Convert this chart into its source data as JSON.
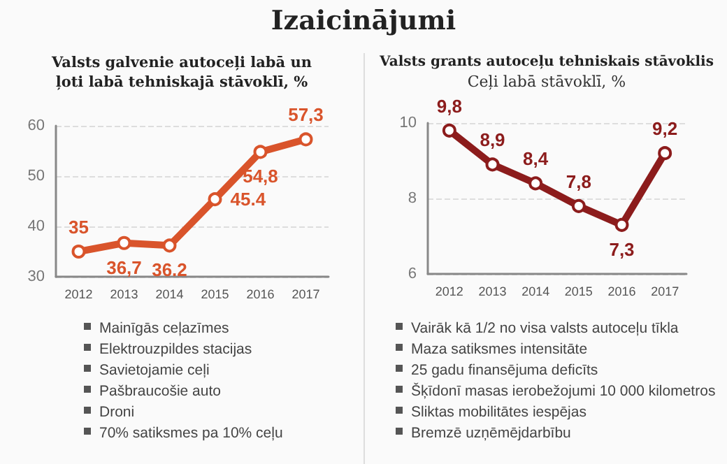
{
  "chart_data": [
    {
      "type": "other",
      "title": "Izaicinājumi"
    },
    {
      "type": "line",
      "title": "Valsts galvenie autoceļi labā un ļoti labā tehniskajā stāvoklī, %",
      "categories": [
        "2012",
        "2013",
        "2014",
        "2015",
        "2016",
        "2017"
      ],
      "series": [
        {
          "color": "#d9542b",
          "values": [
            35,
            36.7,
            36.2,
            45.4,
            54.8,
            57.3
          ],
          "value_labels": [
            "35",
            "36,7",
            "36.2",
            "45.4",
            "54,8",
            "57,3"
          ]
        }
      ],
      "ylim": [
        30,
        60
      ],
      "yticks": [
        30,
        40,
        50,
        60
      ],
      "grid": "y",
      "marker": "circle",
      "line_style": "solid",
      "annotations": [
        "Mainīgās ceļazīmes",
        "Elektrouzpildes stacijas",
        "Savietojamie ceļi",
        "Pašbraucošie auto",
        "Droni",
        "70% satiksmes pa 10% ceļu"
      ]
    },
    {
      "type": "line",
      "title": "Valsts grants autoceļu tehniskais stāvoklis",
      "subtitle": "Ceļi labā stāvoklī, %",
      "categories": [
        "2012",
        "2013",
        "2014",
        "2015",
        "2016",
        "2017"
      ],
      "series": [
        {
          "color": "#8c1c1c",
          "values": [
            9.8,
            8.9,
            8.4,
            7.8,
            7.3,
            9.2
          ],
          "value_labels": [
            "9,8",
            "8,9",
            "8,4",
            "7,8",
            "7,3",
            "9,2"
          ]
        }
      ],
      "ylim": [
        6,
        10
      ],
      "yticks": [
        6,
        8,
        10
      ],
      "grid": "y",
      "marker": "circle",
      "line_style": "solid",
      "annotations": [
        "Vairāk kā 1/2 no visa valsts autoceļu tīkla",
        "Maza satiksmes intensitāte",
        "25 gadu finansējuma deficīts",
        "Šķīdonī masas ierobežojumi 10 000 kilometros",
        "Sliktas mobilitātes iespējas",
        "Bremzē uzņēmējdarbību"
      ]
    }
  ]
}
